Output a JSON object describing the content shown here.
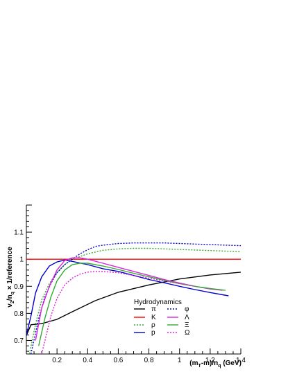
{
  "chart_data": {
    "type": "line",
    "xlabel": "(m_T-m)/n_q (GeV)",
    "xlabel_parts": {
      "open": "(m",
      "sub1": "T",
      "mid": "-m)/n",
      "sub2": "q",
      "unit": " (GeV)"
    },
    "ylabel": "v_2/n_q × 1/reference",
    "ylabel_parts": {
      "v": "v",
      "sub1": "2",
      "mid": "/n",
      "sub2": "q",
      "rest": " × 1/reference"
    },
    "xlim": [
      0.0,
      1.4
    ],
    "ylim": [
      0.65,
      1.2
    ],
    "x_ticks": [
      0.2,
      0.4,
      0.6,
      0.8,
      1,
      1.2,
      1.4
    ],
    "y_ticks": [
      0.7,
      0.8,
      0.9,
      1,
      1.1
    ],
    "grid": false,
    "legend_title": "Hydrodynamics",
    "legend_placement": "bottom-right",
    "series": [
      {
        "name": "π",
        "color": "#000000",
        "dash": "solid",
        "x": [
          0.0,
          0.03,
          0.1,
          0.2,
          0.3,
          0.45,
          0.6,
          0.8,
          1.0,
          1.2,
          1.4
        ],
        "y": [
          0.718,
          0.758,
          0.762,
          0.778,
          0.806,
          0.847,
          0.878,
          0.905,
          0.927,
          0.942,
          0.952
        ]
      },
      {
        "name": "K",
        "color": "#ff0000",
        "dash": "solid",
        "x": [
          0.0,
          1.4
        ],
        "y": [
          1.0,
          1.0
        ]
      },
      {
        "name": "ρ",
        "color": "#33aa33",
        "dash": "dotted",
        "x": [
          0.02,
          0.06,
          0.1,
          0.15,
          0.2,
          0.25,
          0.3,
          0.4,
          0.5,
          0.6,
          0.7,
          0.8,
          0.9,
          1.0,
          1.1,
          1.2,
          1.3,
          1.4
        ],
        "y": [
          0.65,
          0.76,
          0.85,
          0.91,
          0.95,
          0.98,
          1.0,
          1.02,
          1.033,
          1.038,
          1.04,
          1.04,
          1.038,
          1.036,
          1.034,
          1.032,
          1.03,
          1.028
        ]
      },
      {
        "name": "p",
        "color": "#0000cc",
        "dash": "solid",
        "x": [
          0.0,
          0.03,
          0.06,
          0.1,
          0.15,
          0.2,
          0.25,
          0.3,
          0.4,
          0.5,
          0.6,
          0.7,
          0.8,
          0.9,
          1.0,
          1.1,
          1.2,
          1.32
        ],
        "y": [
          0.72,
          0.79,
          0.875,
          0.935,
          0.975,
          0.99,
          0.997,
          0.992,
          0.98,
          0.965,
          0.955,
          0.94,
          0.925,
          0.913,
          0.9,
          0.888,
          0.877,
          0.865
        ]
      },
      {
        "name": "φ",
        "color": "#0000cc",
        "dash": "dotted",
        "x": [
          0.03,
          0.08,
          0.12,
          0.16,
          0.2,
          0.25,
          0.3,
          0.35,
          0.4,
          0.45,
          0.5,
          0.6,
          0.7,
          0.8,
          0.9,
          1.0,
          1.1,
          1.2,
          1.3,
          1.4
        ],
        "y": [
          0.65,
          0.78,
          0.86,
          0.91,
          0.95,
          0.98,
          1.0,
          1.02,
          1.035,
          1.047,
          1.052,
          1.058,
          1.06,
          1.06,
          1.06,
          1.058,
          1.056,
          1.054,
          1.052,
          1.05
        ]
      },
      {
        "name": "Λ",
        "color": "#dd22dd",
        "dash": "solid",
        "x": [
          0.06,
          0.1,
          0.15,
          0.2,
          0.25,
          0.3,
          0.35,
          0.4,
          0.5,
          0.6,
          0.7,
          0.8,
          0.9,
          1.0,
          1.1,
          1.2,
          1.28
        ],
        "y": [
          0.7,
          0.82,
          0.9,
          0.96,
          0.995,
          1.005,
          1.005,
          1.0,
          0.985,
          0.97,
          0.955,
          0.94,
          0.925,
          0.912,
          0.9,
          0.89,
          0.885
        ]
      },
      {
        "name": "Ξ",
        "color": "#33aa33",
        "dash": "solid",
        "x": [
          0.08,
          0.12,
          0.16,
          0.2,
          0.25,
          0.3,
          0.35,
          0.4,
          0.5,
          0.6,
          0.7,
          0.8,
          0.9,
          1.0,
          1.1,
          1.2,
          1.3
        ],
        "y": [
          0.68,
          0.78,
          0.86,
          0.92,
          0.96,
          0.98,
          0.985,
          0.985,
          0.975,
          0.962,
          0.948,
          0.935,
          0.922,
          0.91,
          0.9,
          0.892,
          0.885
        ]
      },
      {
        "name": "Ω",
        "color": "#dd22dd",
        "dash": "dotted",
        "x": [
          0.1,
          0.13,
          0.16,
          0.2,
          0.25,
          0.3,
          0.35,
          0.4,
          0.45,
          0.5,
          0.6,
          0.7,
          0.8,
          0.9,
          1.0,
          1.1
        ],
        "y": [
          0.65,
          0.72,
          0.79,
          0.855,
          0.905,
          0.93,
          0.945,
          0.952,
          0.955,
          0.955,
          0.95,
          0.94,
          0.93,
          0.92,
          0.91,
          0.9
        ]
      }
    ]
  }
}
